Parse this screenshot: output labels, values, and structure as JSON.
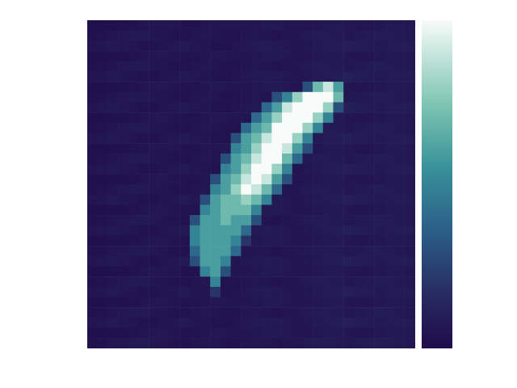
{
  "chart_data": {
    "type": "heatmap",
    "tick_labels": false,
    "colorbar": {
      "range": [
        0,
        1
      ]
    },
    "cells": [
      [
        0.02,
        0.02,
        0.03,
        0.03,
        0.04,
        0.05,
        0.06,
        0.06,
        0.05,
        0.04,
        0.04,
        0.05,
        0.06,
        0.06,
        0.05,
        0.05,
        0.06,
        0.07,
        0.07,
        0.06,
        0.05,
        0.05,
        0.06,
        0.07,
        0.07,
        0.06,
        0.05,
        0.05,
        0.06,
        0.07,
        0.07,
        0.06
      ],
      [
        0.03,
        0.04,
        0.05,
        0.06,
        0.07,
        0.07,
        0.06,
        0.05,
        0.04,
        0.04,
        0.05,
        0.06,
        0.05,
        0.04,
        0.04,
        0.05,
        0.06,
        0.05,
        0.04,
        0.05,
        0.06,
        0.07,
        0.08,
        0.08,
        0.07,
        0.06,
        0.07,
        0.08,
        0.09,
        0.08,
        0.07,
        0.06
      ],
      [
        0.05,
        0.06,
        0.07,
        0.06,
        0.05,
        0.04,
        0.04,
        0.05,
        0.06,
        0.07,
        0.06,
        0.05,
        0.04,
        0.04,
        0.05,
        0.06,
        0.07,
        0.08,
        0.07,
        0.06,
        0.05,
        0.06,
        0.07,
        0.08,
        0.09,
        0.1,
        0.09,
        0.08,
        0.07,
        0.08,
        0.09,
        0.08
      ],
      [
        0.02,
        0.02,
        0.03,
        0.03,
        0.04,
        0.05,
        0.06,
        0.06,
        0.05,
        0.04,
        0.04,
        0.05,
        0.06,
        0.06,
        0.05,
        0.05,
        0.06,
        0.07,
        0.07,
        0.06,
        0.05,
        0.05,
        0.06,
        0.07,
        0.07,
        0.06,
        0.05,
        0.05,
        0.06,
        0.07,
        0.07,
        0.06
      ],
      [
        0.03,
        0.04,
        0.05,
        0.06,
        0.07,
        0.07,
        0.06,
        0.05,
        0.04,
        0.04,
        0.05,
        0.06,
        0.05,
        0.04,
        0.04,
        0.05,
        0.06,
        0.05,
        0.04,
        0.05,
        0.06,
        0.07,
        0.08,
        0.08,
        0.07,
        0.06,
        0.07,
        0.08,
        0.09,
        0.08,
        0.07,
        0.06
      ],
      [
        0.05,
        0.06,
        0.07,
        0.06,
        0.05,
        0.04,
        0.04,
        0.05,
        0.06,
        0.07,
        0.06,
        0.05,
        0.04,
        0.04,
        0.05,
        0.06,
        0.07,
        0.08,
        0.07,
        0.06,
        0.05,
        0.06,
        0.07,
        0.08,
        0.09,
        0.1,
        0.09,
        0.08,
        0.07,
        0.08,
        0.09,
        0.08
      ],
      [
        0.02,
        0.02,
        0.03,
        0.03,
        0.04,
        0.05,
        0.06,
        0.06,
        0.05,
        0.04,
        0.04,
        0.05,
        0.06,
        0.06,
        0.05,
        0.05,
        0.06,
        0.07,
        0.07,
        0.06,
        0.05,
        0.3,
        0.7,
        0.9,
        0.6,
        0.06,
        0.05,
        0.05,
        0.06,
        0.07,
        0.07,
        0.06
      ],
      [
        0.03,
        0.04,
        0.05,
        0.06,
        0.07,
        0.07,
        0.06,
        0.05,
        0.04,
        0.04,
        0.05,
        0.06,
        0.05,
        0.04,
        0.04,
        0.05,
        0.06,
        0.05,
        0.3,
        0.5,
        0.8,
        1,
        1,
        1,
        0.7,
        0.06,
        0.07,
        0.08,
        0.09,
        0.08,
        0.07,
        0.06
      ],
      [
        0.05,
        0.06,
        0.07,
        0.06,
        0.05,
        0.04,
        0.04,
        0.05,
        0.06,
        0.07,
        0.06,
        0.05,
        0.04,
        0.04,
        0.05,
        0.06,
        0.07,
        0.4,
        0.6,
        0.9,
        1,
        1,
        1,
        0.8,
        0.3,
        0.1,
        0.09,
        0.08,
        0.07,
        0.08,
        0.09,
        0.08
      ],
      [
        0.02,
        0.02,
        0.03,
        0.03,
        0.04,
        0.05,
        0.06,
        0.06,
        0.05,
        0.04,
        0.04,
        0.05,
        0.06,
        0.06,
        0.05,
        0.05,
        0.4,
        0.6,
        0.8,
        1,
        1,
        1,
        0.8,
        0.5,
        0.07,
        0.06,
        0.05,
        0.05,
        0.06,
        0.07,
        0.07,
        0.06
      ],
      [
        0.03,
        0.04,
        0.05,
        0.06,
        0.07,
        0.07,
        0.06,
        0.05,
        0.04,
        0.04,
        0.05,
        0.06,
        0.05,
        0.04,
        0.04,
        0.4,
        0.6,
        0.7,
        1,
        1,
        1,
        0.8,
        0.5,
        0.08,
        0.07,
        0.06,
        0.07,
        0.08,
        0.09,
        0.08,
        0.07,
        0.06
      ],
      [
        0.05,
        0.06,
        0.07,
        0.06,
        0.05,
        0.04,
        0.04,
        0.05,
        0.06,
        0.07,
        0.06,
        0.05,
        0.04,
        0.04,
        0.3,
        0.6,
        0.7,
        0.9,
        1,
        1,
        0.8,
        0.5,
        0.07,
        0.08,
        0.09,
        0.1,
        0.09,
        0.08,
        0.07,
        0.08,
        0.09,
        0.08
      ],
      [
        0.02,
        0.02,
        0.03,
        0.03,
        0.04,
        0.05,
        0.06,
        0.06,
        0.05,
        0.04,
        0.04,
        0.05,
        0.06,
        0.06,
        0.5,
        0.6,
        0.8,
        1,
        1,
        0.9,
        0.6,
        0.3,
        0.06,
        0.07,
        0.07,
        0.06,
        0.05,
        0.05,
        0.06,
        0.07,
        0.07,
        0.06
      ],
      [
        0.03,
        0.04,
        0.05,
        0.06,
        0.07,
        0.07,
        0.06,
        0.05,
        0.04,
        0.04,
        0.05,
        0.06,
        0.05,
        0.3,
        0.6,
        0.7,
        0.9,
        1,
        1,
        0.7,
        0.4,
        0.07,
        0.08,
        0.08,
        0.07,
        0.06,
        0.07,
        0.08,
        0.09,
        0.08,
        0.07,
        0.06
      ],
      [
        0.05,
        0.06,
        0.07,
        0.06,
        0.05,
        0.04,
        0.04,
        0.05,
        0.06,
        0.07,
        0.06,
        0.05,
        0.04,
        0.5,
        0.6,
        0.8,
        1,
        1,
        0.8,
        0.5,
        0.05,
        0.06,
        0.07,
        0.08,
        0.09,
        0.1,
        0.09,
        0.08,
        0.07,
        0.08,
        0.09,
        0.08
      ],
      [
        0.02,
        0.02,
        0.03,
        0.03,
        0.04,
        0.05,
        0.06,
        0.06,
        0.05,
        0.04,
        0.04,
        0.05,
        0.3,
        0.6,
        0.7,
        0.9,
        1,
        0.9,
        0.6,
        0.3,
        0.05,
        0.05,
        0.06,
        0.07,
        0.07,
        0.06,
        0.05,
        0.05,
        0.06,
        0.07,
        0.07,
        0.06
      ],
      [
        0.03,
        0.04,
        0.05,
        0.06,
        0.07,
        0.07,
        0.06,
        0.05,
        0.04,
        0.04,
        0.05,
        0.06,
        0.5,
        0.6,
        0.8,
        1,
        0.9,
        0.7,
        0.4,
        0.05,
        0.06,
        0.07,
        0.08,
        0.08,
        0.07,
        0.06,
        0.07,
        0.08,
        0.09,
        0.08,
        0.07,
        0.06
      ],
      [
        0.05,
        0.06,
        0.07,
        0.06,
        0.05,
        0.04,
        0.04,
        0.05,
        0.06,
        0.07,
        0.06,
        0.3,
        0.6,
        0.7,
        0.7,
        0.8,
        0.7,
        0.5,
        0.07,
        0.06,
        0.05,
        0.06,
        0.07,
        0.08,
        0.09,
        0.1,
        0.09,
        0.08,
        0.07,
        0.08,
        0.09,
        0.08
      ],
      [
        0.02,
        0.02,
        0.03,
        0.03,
        0.04,
        0.05,
        0.06,
        0.06,
        0.05,
        0.04,
        0.04,
        0.5,
        0.6,
        0.7,
        0.7,
        0.7,
        0.5,
        0.07,
        0.07,
        0.06,
        0.05,
        0.05,
        0.06,
        0.07,
        0.07,
        0.06,
        0.05,
        0.05,
        0.06,
        0.07,
        0.07,
        0.06
      ],
      [
        0.03,
        0.04,
        0.05,
        0.06,
        0.07,
        0.07,
        0.06,
        0.05,
        0.04,
        0.04,
        0.3,
        0.6,
        0.6,
        0.7,
        0.6,
        0.6,
        0.3,
        0.05,
        0.04,
        0.05,
        0.06,
        0.07,
        0.08,
        0.08,
        0.07,
        0.06,
        0.07,
        0.08,
        0.09,
        0.08,
        0.07,
        0.06
      ],
      [
        0.05,
        0.06,
        0.07,
        0.06,
        0.05,
        0.04,
        0.04,
        0.05,
        0.06,
        0.07,
        0.5,
        0.6,
        0.6,
        0.6,
        0.6,
        0.4,
        0.07,
        0.08,
        0.07,
        0.06,
        0.05,
        0.06,
        0.07,
        0.08,
        0.09,
        0.1,
        0.09,
        0.08,
        0.07,
        0.08,
        0.09,
        0.08
      ],
      [
        0.02,
        0.02,
        0.03,
        0.03,
        0.04,
        0.05,
        0.06,
        0.06,
        0.05,
        0.04,
        0.5,
        0.6,
        0.6,
        0.6,
        0.5,
        0.2,
        0.06,
        0.07,
        0.07,
        0.06,
        0.05,
        0.05,
        0.06,
        0.07,
        0.07,
        0.06,
        0.05,
        0.05,
        0.06,
        0.07,
        0.07,
        0.06
      ],
      [
        0.03,
        0.04,
        0.05,
        0.06,
        0.07,
        0.07,
        0.06,
        0.05,
        0.04,
        0.04,
        0.4,
        0.6,
        0.6,
        0.6,
        0.4,
        0.05,
        0.06,
        0.05,
        0.04,
        0.05,
        0.06,
        0.07,
        0.08,
        0.08,
        0.07,
        0.06,
        0.07,
        0.08,
        0.09,
        0.08,
        0.07,
        0.06
      ],
      [
        0.05,
        0.06,
        0.07,
        0.06,
        0.05,
        0.04,
        0.04,
        0.05,
        0.06,
        0.07,
        0.3,
        0.6,
        0.6,
        0.5,
        0.05,
        0.06,
        0.07,
        0.08,
        0.07,
        0.06,
        0.05,
        0.06,
        0.07,
        0.08,
        0.09,
        0.1,
        0.09,
        0.08,
        0.07,
        0.08,
        0.09,
        0.08
      ],
      [
        0.02,
        0.02,
        0.03,
        0.03,
        0.04,
        0.05,
        0.06,
        0.06,
        0.05,
        0.04,
        0.04,
        0.5,
        0.6,
        0.3,
        0.05,
        0.05,
        0.06,
        0.07,
        0.07,
        0.06,
        0.05,
        0.05,
        0.06,
        0.07,
        0.07,
        0.06,
        0.05,
        0.05,
        0.06,
        0.07,
        0.07,
        0.06
      ],
      [
        0.03,
        0.04,
        0.05,
        0.06,
        0.07,
        0.07,
        0.06,
        0.05,
        0.04,
        0.04,
        0.05,
        0.06,
        0.5,
        0.04,
        0.04,
        0.05,
        0.06,
        0.05,
        0.04,
        0.05,
        0.06,
        0.07,
        0.08,
        0.08,
        0.07,
        0.06,
        0.07,
        0.08,
        0.09,
        0.08,
        0.07,
        0.06
      ],
      [
        0.05,
        0.06,
        0.07,
        0.06,
        0.05,
        0.04,
        0.04,
        0.05,
        0.06,
        0.07,
        0.06,
        0.05,
        0.2,
        0.04,
        0.05,
        0.06,
        0.07,
        0.08,
        0.07,
        0.06,
        0.05,
        0.06,
        0.07,
        0.08,
        0.09,
        0.1,
        0.09,
        0.08,
        0.07,
        0.08,
        0.09,
        0.08
      ],
      [
        0.02,
        0.02,
        0.03,
        0.03,
        0.04,
        0.05,
        0.06,
        0.06,
        0.05,
        0.04,
        0.04,
        0.05,
        0.06,
        0.06,
        0.05,
        0.05,
        0.06,
        0.07,
        0.07,
        0.06,
        0.05,
        0.05,
        0.06,
        0.07,
        0.07,
        0.06,
        0.05,
        0.05,
        0.06,
        0.07,
        0.07,
        0.06
      ],
      [
        0.03,
        0.04,
        0.05,
        0.06,
        0.07,
        0.07,
        0.06,
        0.05,
        0.04,
        0.04,
        0.05,
        0.06,
        0.05,
        0.04,
        0.04,
        0.05,
        0.06,
        0.05,
        0.04,
        0.05,
        0.06,
        0.07,
        0.08,
        0.08,
        0.07,
        0.06,
        0.07,
        0.08,
        0.09,
        0.08,
        0.07,
        0.06
      ],
      [
        0.05,
        0.06,
        0.07,
        0.06,
        0.05,
        0.04,
        0.04,
        0.05,
        0.06,
        0.07,
        0.06,
        0.05,
        0.04,
        0.04,
        0.05,
        0.06,
        0.07,
        0.08,
        0.07,
        0.06,
        0.05,
        0.06,
        0.07,
        0.08,
        0.09,
        0.1,
        0.09,
        0.08,
        0.07,
        0.08,
        0.09,
        0.08
      ],
      [
        0.02,
        0.02,
        0.03,
        0.03,
        0.04,
        0.05,
        0.06,
        0.06,
        0.05,
        0.04,
        0.04,
        0.05,
        0.06,
        0.06,
        0.05,
        0.05,
        0.06,
        0.07,
        0.07,
        0.06,
        0.05,
        0.05,
        0.06,
        0.07,
        0.07,
        0.06,
        0.05,
        0.05,
        0.06,
        0.07,
        0.07,
        0.06
      ],
      [
        0.03,
        0.04,
        0.05,
        0.06,
        0.07,
        0.07,
        0.06,
        0.05,
        0.04,
        0.04,
        0.05,
        0.06,
        0.05,
        0.04,
        0.04,
        0.05,
        0.06,
        0.05,
        0.04,
        0.05,
        0.06,
        0.07,
        0.08,
        0.08,
        0.07,
        0.06,
        0.07,
        0.08,
        0.09,
        0.08,
        0.07,
        0.06
      ]
    ]
  }
}
